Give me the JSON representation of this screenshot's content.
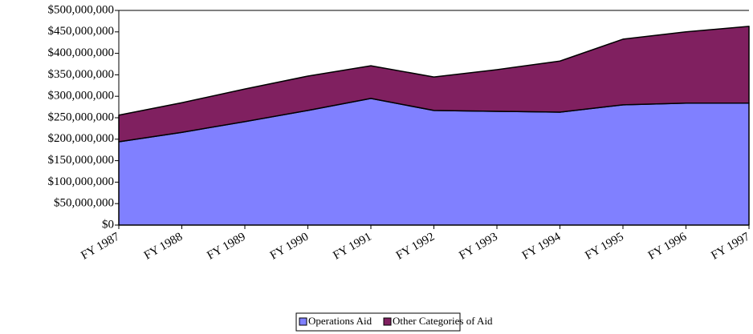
{
  "chart_data": {
    "type": "stacked_area",
    "categories": [
      "FY 1987",
      "FY 1988",
      "FY 1989",
      "FY 1990",
      "FY 1991",
      "FY 1992",
      "FY 1993",
      "FY 1994",
      "FY 1995",
      "FY 1996",
      "FY 1997"
    ],
    "series": [
      {
        "name": "Operations Aid",
        "color": "#8080ff",
        "values": [
          194000000,
          216000000,
          241000000,
          267000000,
          295000000,
          267000000,
          265000000,
          263000000,
          280000000,
          284000000,
          284000000
        ]
      },
      {
        "name": "Other Categories of Aid",
        "color": "#802060",
        "values": [
          62000000,
          69000000,
          76000000,
          80000000,
          76000000,
          78000000,
          97000000,
          119000000,
          153000000,
          166000000,
          179000000
        ]
      }
    ],
    "ylim": [
      0,
      500000000
    ],
    "yticks": [
      {
        "value": 0,
        "label": "$0"
      },
      {
        "value": 50000000,
        "label": "$50,000,000"
      },
      {
        "value": 100000000,
        "label": "$100,000,000"
      },
      {
        "value": 150000000,
        "label": "$150,000,000"
      },
      {
        "value": 200000000,
        "label": "$200,000,000"
      },
      {
        "value": 250000000,
        "label": "$250,000,000"
      },
      {
        "value": 300000000,
        "label": "$300,000,000"
      },
      {
        "value": 350000000,
        "label": "$350,000,000"
      },
      {
        "value": 400000000,
        "label": "$400,000,000"
      },
      {
        "value": 450000000,
        "label": "$450,000,000"
      },
      {
        "value": 500000000,
        "label": "$500,000,000"
      }
    ],
    "legend": "bottom"
  }
}
